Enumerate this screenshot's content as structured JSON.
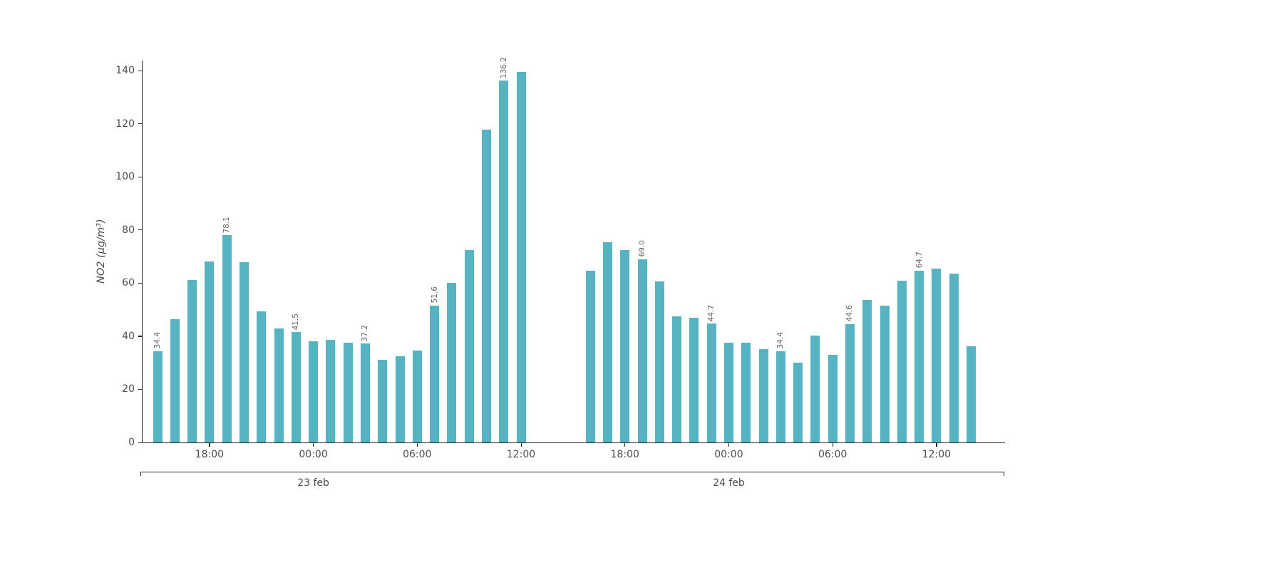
{
  "chart_data": {
    "type": "bar",
    "title": "",
    "xlabel": "",
    "ylabel": "NO2 (μg/m³)",
    "ylim": [
      0,
      143.8
    ],
    "yticks": [
      0,
      20,
      40,
      60,
      80,
      100,
      120,
      140
    ],
    "grid": false,
    "legend": "none",
    "bar_color": "#56B4C2",
    "axis_color": "#262626",
    "tick_label_color": "#4d4d4d",
    "annotation_color": "#666666",
    "series": [
      {
        "name": "23 feb",
        "start_hour": 15,
        "values": [
          34.4,
          46.4,
          61.1,
          68.1,
          78.1,
          67.8,
          49.3,
          42.9,
          41.5,
          38.1,
          38.6,
          37.5,
          37.2,
          31.1,
          32.4,
          34.6,
          51.6,
          60.1,
          72.4,
          117.9,
          136.2,
          139.4
        ],
        "annotations": {
          "0": "34.4",
          "4": "78.1",
          "8": "41.5",
          "12": "37.2",
          "16": "51.6",
          "20": "136.2"
        }
      },
      {
        "name": "24 feb",
        "start_hour": 40,
        "values": [
          64.6,
          75.3,
          72.4,
          69.0,
          60.6,
          47.5,
          46.9,
          44.7,
          37.5,
          37.5,
          35.1,
          34.4,
          30.0,
          40.2,
          32.9,
          44.6,
          53.6,
          51.5,
          60.9,
          64.7,
          65.4,
          63.5,
          36.1
        ],
        "annotations": {
          "3": "69.0",
          "7": "44.7",
          "11": "34.4",
          "15": "44.6",
          "19": "64.7"
        }
      }
    ],
    "xticks": [
      {
        "h": 18,
        "label": "18:00"
      },
      {
        "h": 24,
        "label": "00:00"
      },
      {
        "h": 30,
        "label": "06:00"
      },
      {
        "h": 36,
        "label": "12:00"
      },
      {
        "h": 42,
        "label": "18:00"
      },
      {
        "h": 48,
        "label": "00:00"
      },
      {
        "h": 54,
        "label": "06:00"
      },
      {
        "h": 60,
        "label": "12:00"
      }
    ],
    "date_labels": [
      {
        "label": "23 feb",
        "center_h": 24
      },
      {
        "label": "24 feb",
        "center_h": 48
      }
    ]
  }
}
